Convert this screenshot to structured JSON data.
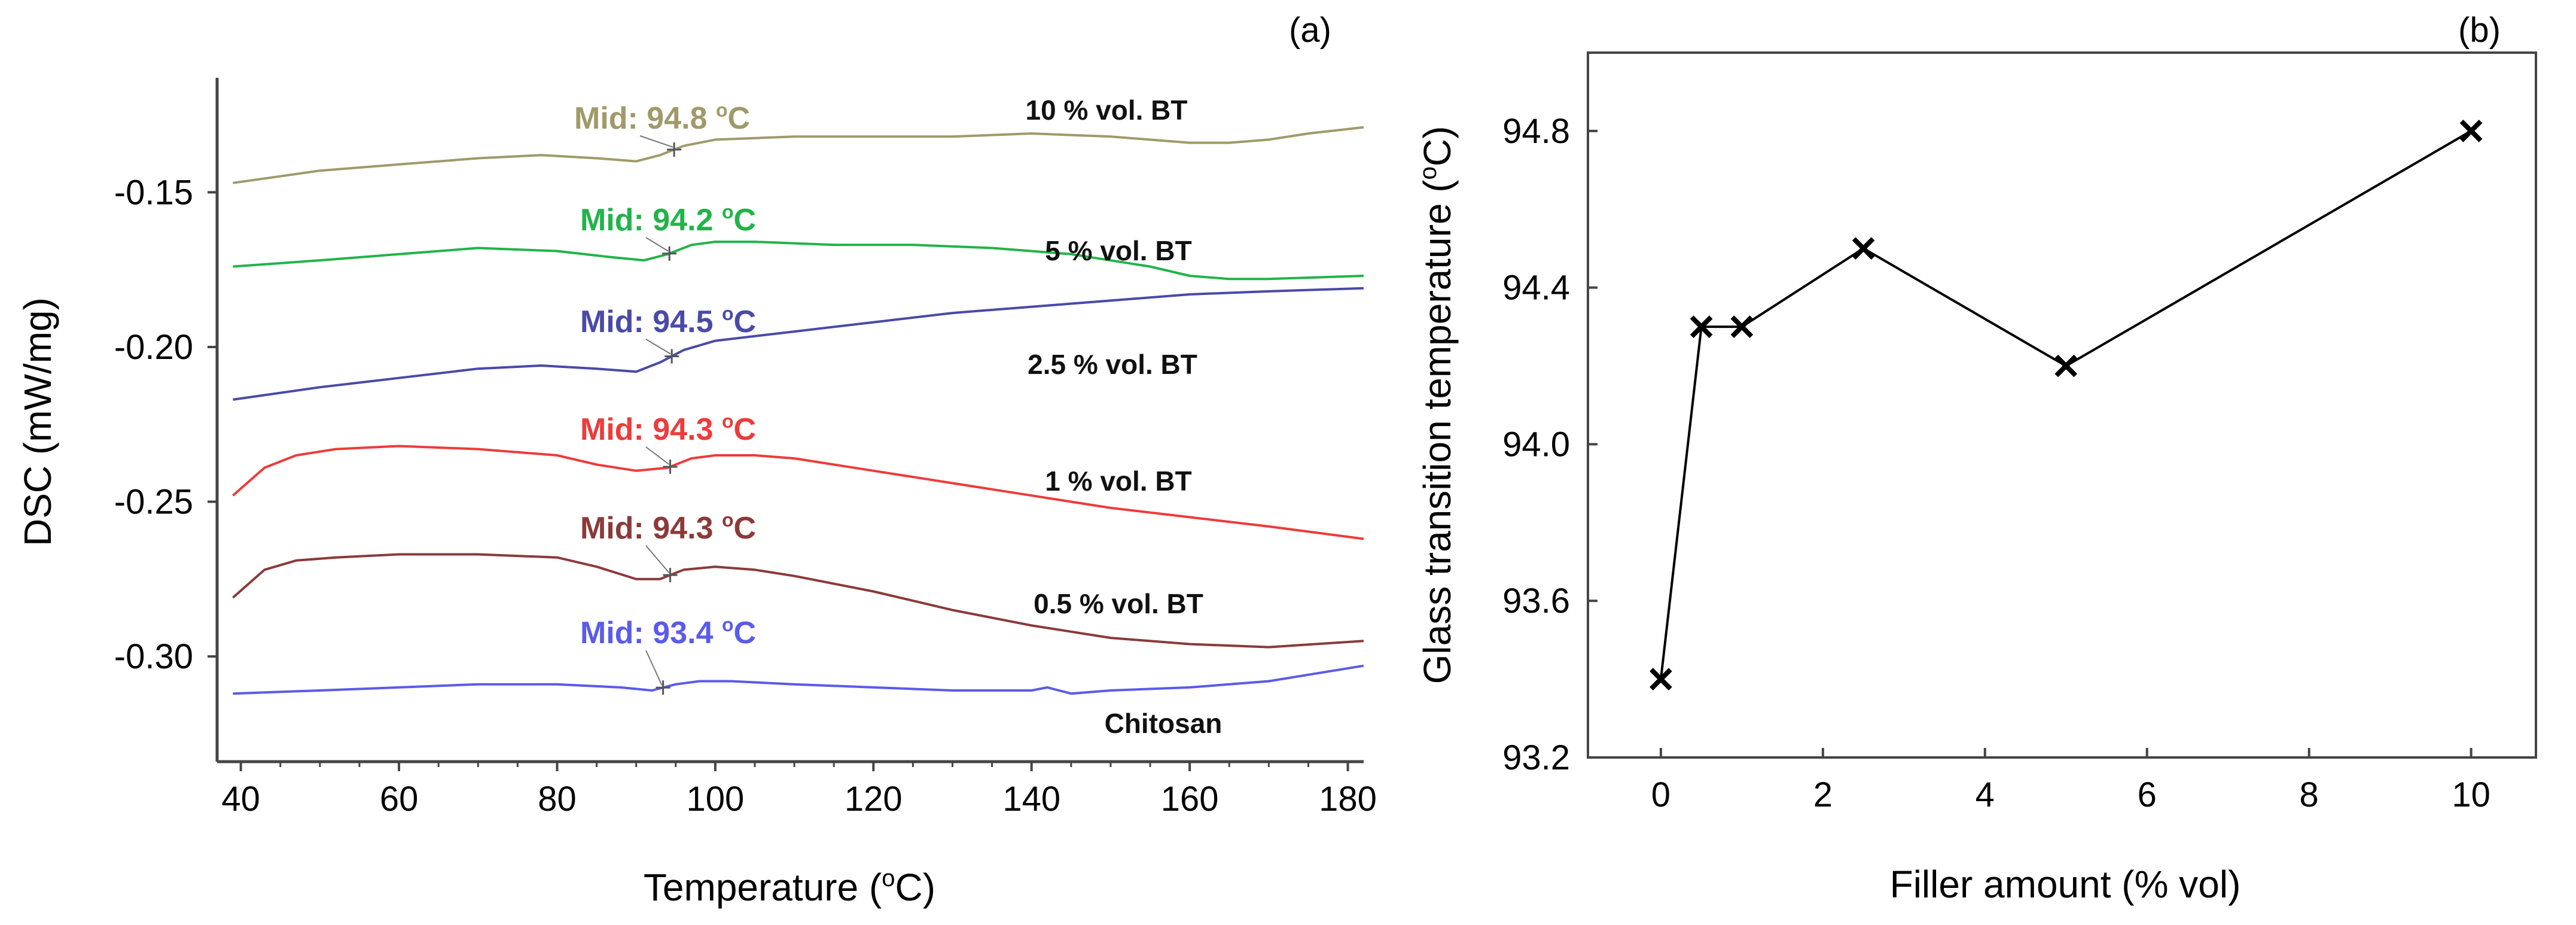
{
  "chart_data": [
    {
      "type": "line",
      "panel_label": "(a)",
      "title": "",
      "xlabel": "Temperature (",
      "xlabel_sup": "o",
      "xlabel_end": "C)",
      "ylabel": "DSC (mW/mg)",
      "xlim": [
        37,
        182
      ],
      "ylim": [
        -0.334,
        -0.113
      ],
      "xticks": [
        40,
        60,
        80,
        100,
        120,
        140,
        160,
        180
      ],
      "yticks": [
        -0.15,
        -0.2,
        -0.25,
        -0.3
      ],
      "ytick_labels": [
        "-0.15",
        "-0.20",
        "-0.25",
        "-0.30"
      ],
      "grid": false,
      "series": [
        {
          "name": "10 % vol. BT",
          "color": "#A09A6A",
          "mid_label": "Mid: 94.8 ",
          "mid_temp": 94.8,
          "x": [
            39,
            50,
            60,
            70,
            78,
            85,
            90,
            93,
            96,
            100,
            110,
            120,
            130,
            140,
            150,
            160,
            165,
            170,
            175,
            182
          ],
          "y": [
            -0.147,
            -0.143,
            -0.141,
            -0.139,
            -0.138,
            -0.139,
            -0.14,
            -0.138,
            -0.135,
            -0.133,
            -0.132,
            -0.132,
            -0.132,
            -0.131,
            -0.132,
            -0.134,
            -0.134,
            -0.133,
            -0.131,
            -0.129
          ]
        },
        {
          "name": "5 % vol. BT",
          "color": "#22B34A",
          "mid_label": "Mid: 94.2 ",
          "mid_temp": 94.2,
          "x": [
            39,
            50,
            60,
            70,
            80,
            87,
            91,
            94,
            97,
            100,
            105,
            115,
            125,
            135,
            145,
            155,
            160,
            165,
            170,
            182
          ],
          "y": [
            -0.174,
            -0.172,
            -0.17,
            -0.168,
            -0.169,
            -0.171,
            -0.172,
            -0.17,
            -0.167,
            -0.166,
            -0.166,
            -0.167,
            -0.167,
            -0.168,
            -0.17,
            -0.174,
            -0.177,
            -0.178,
            -0.178,
            -0.177
          ]
        },
        {
          "name": "2.5 % vol. BT",
          "color": "#4A4AA8",
          "mid_label": "Mid: 94.5 ",
          "mid_temp": 94.5,
          "x": [
            39,
            50,
            60,
            70,
            78,
            85,
            90,
            93,
            96,
            100,
            110,
            120,
            130,
            140,
            150,
            160,
            170,
            182
          ],
          "y": [
            -0.217,
            -0.213,
            -0.21,
            -0.207,
            -0.206,
            -0.207,
            -0.208,
            -0.205,
            -0.201,
            -0.198,
            -0.195,
            -0.192,
            -0.189,
            -0.187,
            -0.185,
            -0.183,
            -0.182,
            -0.181
          ]
        },
        {
          "name": "1 % vol. BT",
          "color": "#EE3B3B",
          "mid_label": "Mid:  94.3 ",
          "mid_temp": 94.3,
          "x": [
            39,
            43,
            47,
            52,
            60,
            70,
            80,
            85,
            90,
            94,
            97,
            100,
            105,
            110,
            120,
            130,
            140,
            150,
            160,
            170,
            182
          ],
          "y": [
            -0.248,
            -0.239,
            -0.235,
            -0.233,
            -0.232,
            -0.233,
            -0.235,
            -0.238,
            -0.24,
            -0.239,
            -0.236,
            -0.235,
            -0.235,
            -0.236,
            -0.24,
            -0.244,
            -0.248,
            -0.252,
            -0.255,
            -0.258,
            -0.262
          ]
        },
        {
          "name": "0.5 % vol. BT",
          "color": "#8B3A3A",
          "mid_label": "Mid: 94.3 ",
          "mid_temp": 94.3,
          "x": [
            39,
            43,
            47,
            52,
            60,
            70,
            80,
            85,
            90,
            93,
            96,
            100,
            105,
            110,
            120,
            130,
            140,
            150,
            160,
            170,
            182
          ],
          "y": [
            -0.281,
            -0.272,
            -0.269,
            -0.268,
            -0.267,
            -0.267,
            -0.268,
            -0.271,
            -0.275,
            -0.275,
            -0.272,
            -0.271,
            -0.272,
            -0.274,
            -0.279,
            -0.285,
            -0.29,
            -0.294,
            -0.296,
            -0.297,
            -0.295
          ]
        },
        {
          "name": "Chitosan",
          "color": "#5B5BEA",
          "mid_label": "Mid: 93.4 ",
          "mid_temp": 93.4,
          "x": [
            39,
            50,
            60,
            70,
            80,
            88,
            92,
            95,
            98,
            102,
            110,
            120,
            130,
            140,
            142,
            145,
            150,
            160,
            170,
            182
          ],
          "y": [
            -0.312,
            -0.311,
            -0.31,
            -0.309,
            -0.309,
            -0.31,
            -0.311,
            -0.309,
            -0.308,
            -0.308,
            -0.309,
            -0.31,
            -0.311,
            -0.311,
            -0.31,
            -0.312,
            -0.311,
            -0.31,
            -0.308,
            -0.303
          ]
        }
      ]
    },
    {
      "type": "line",
      "panel_label": "(b)",
      "title": "",
      "xlabel": "Filler amount (% vol)",
      "ylabel": "Glass transition temperature (",
      "ylabel_sup": "o",
      "ylabel_end": "C)",
      "xlim": [
        -0.9,
        10.8
      ],
      "ylim": [
        93.2,
        95.0
      ],
      "xticks": [
        0,
        2,
        4,
        6,
        8,
        10
      ],
      "yticks": [
        93.2,
        93.6,
        94.0,
        94.4,
        94.8
      ],
      "ytick_labels": [
        "93.2",
        "93.6",
        "94.0",
        "94.4",
        "94.8"
      ],
      "grid": false,
      "marker": "x",
      "color": "#000000",
      "x": [
        0,
        0.5,
        1,
        2.5,
        5,
        10
      ],
      "y": [
        93.4,
        94.3,
        94.3,
        94.5,
        94.2,
        94.8
      ]
    }
  ]
}
